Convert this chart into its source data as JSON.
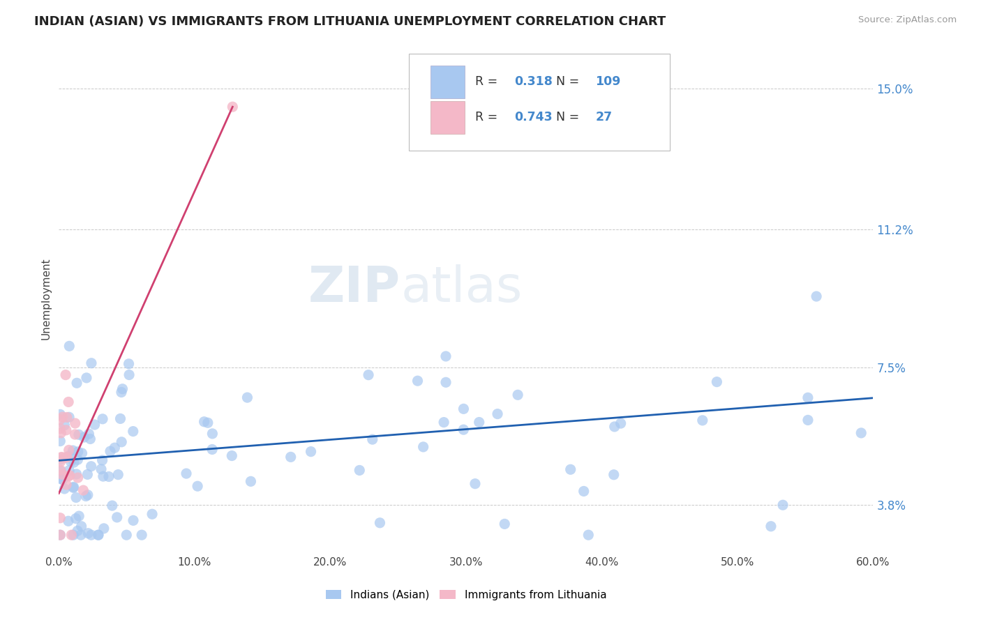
{
  "title": "INDIAN (ASIAN) VS IMMIGRANTS FROM LITHUANIA UNEMPLOYMENT CORRELATION CHART",
  "source": "Source: ZipAtlas.com",
  "ylabel": "Unemployment",
  "xlim": [
    0.0,
    0.6
  ],
  "ylim": [
    0.025,
    0.162
  ],
  "yticks": [
    0.038,
    0.075,
    0.112,
    0.15
  ],
  "ytick_labels": [
    "3.8%",
    "7.5%",
    "11.2%",
    "15.0%"
  ],
  "xticks": [
    0.0,
    0.1,
    0.2,
    0.3,
    0.4,
    0.5,
    0.6
  ],
  "xtick_labels": [
    "0.0%",
    "10.0%",
    "20.0%",
    "30.0%",
    "40.0%",
    "50.0%",
    "60.0%"
  ],
  "blue_color": "#a8c8f0",
  "pink_color": "#f4b8c8",
  "blue_line_color": "#2060b0",
  "pink_line_color": "#d04070",
  "legend1_r": "0.318",
  "legend1_n": "109",
  "legend2_r": "0.743",
  "legend2_n": "27",
  "background_color": "#ffffff",
  "grid_color": "#bbbbbb",
  "title_color": "#222222",
  "source_color": "#999999",
  "ytick_color": "#4488cc",
  "xtick_color": "#444444",
  "ylabel_color": "#444444"
}
